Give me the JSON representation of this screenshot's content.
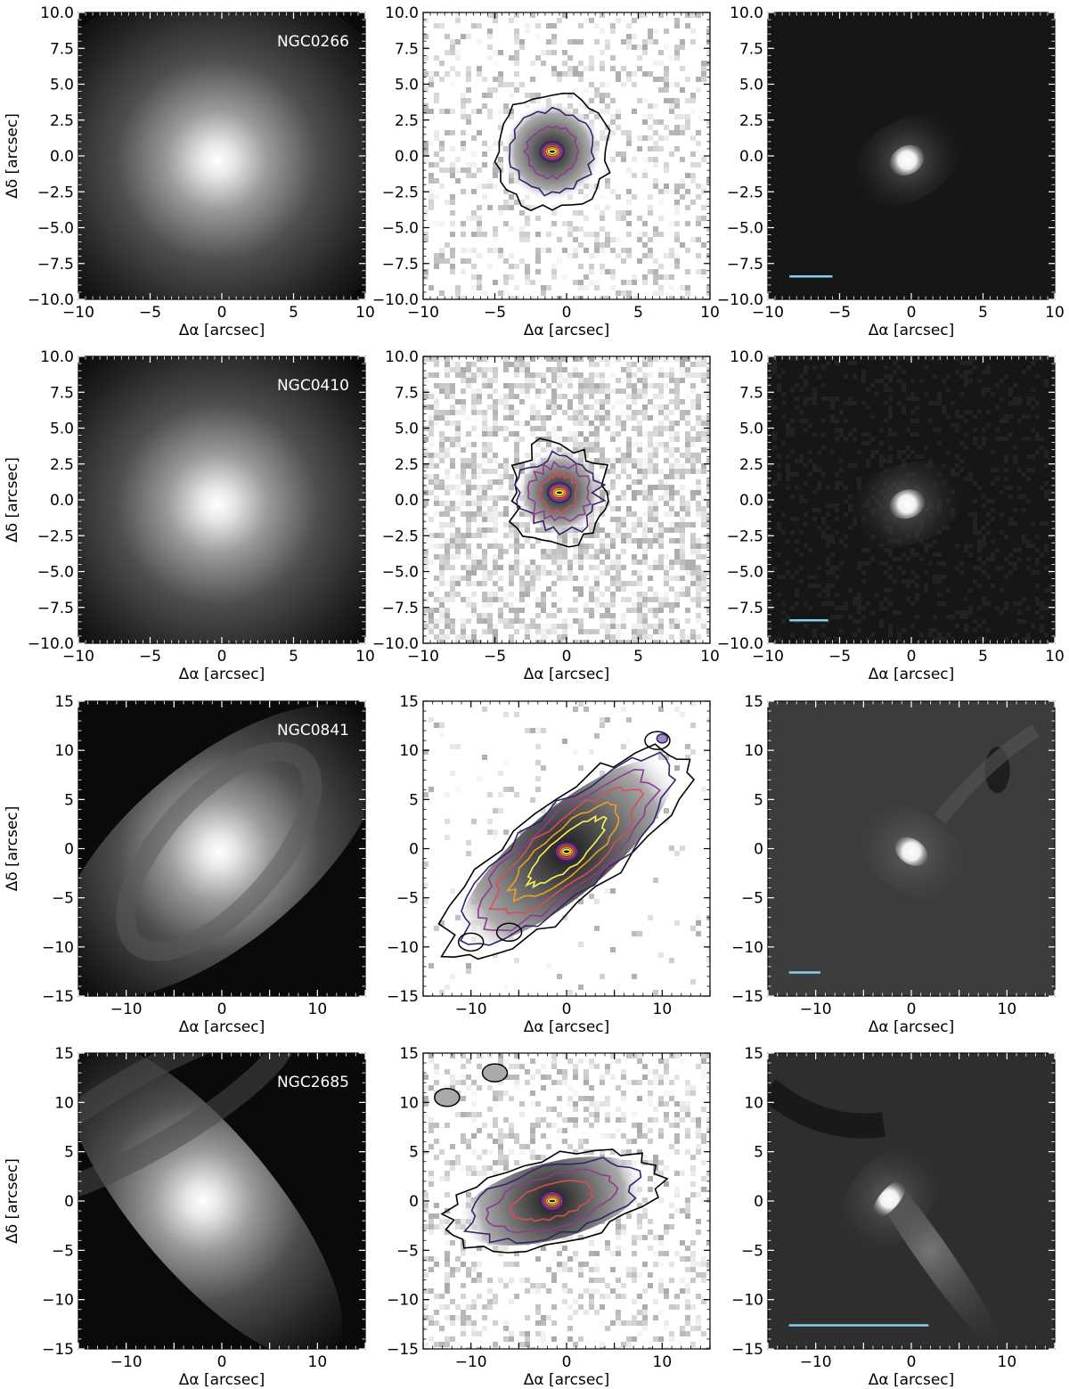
{
  "figure": {
    "xlabel": "Δα [arcsec]",
    "ylabel": "Δδ [arcsec]",
    "columns": [
      "image",
      "map",
      "residual"
    ],
    "rows": [
      {
        "galaxy": "NGC0266",
        "lim": 10,
        "ticks": [
          -10,
          -5,
          0,
          5,
          10
        ],
        "ytick_labels": [
          "−10.0",
          "−7.5",
          "−5.0",
          "−2.5",
          "0.0",
          "2.5",
          "5.0",
          "7.5",
          "10.0"
        ],
        "xtick_labels": [
          "−10",
          "−5",
          "0",
          "5",
          "10"
        ],
        "image": {
          "core": [
            -0.3,
            -0.3
          ],
          "axis_ratio": 0.9,
          "angle": 0
        },
        "map": {
          "type": "blob",
          "center": [
            -1,
            0.3
          ],
          "contours": 3
        },
        "residual": {
          "core": [
            -0.3,
            -0.3
          ],
          "angle": -30
        },
        "scalebar_arcsec": [
          -8.5,
          -5.5
        ],
        "scalebar_y": -8.4
      },
      {
        "galaxy": "NGC0410",
        "lim": 10,
        "ticks": [
          -10,
          -5,
          0,
          5,
          10
        ],
        "ytick_labels": [
          "−10.0",
          "−7.5",
          "−5.0",
          "−2.5",
          "0.0",
          "2.5",
          "5.0",
          "7.5",
          "10.0"
        ],
        "xtick_labels": [
          "−10",
          "−5",
          "0",
          "5",
          "10"
        ],
        "image": {
          "core": [
            -0.3,
            -0.3
          ],
          "axis_ratio": 0.95,
          "angle": 0
        },
        "map": {
          "type": "noisy",
          "center": [
            -0.5,
            0.5
          ],
          "contours": 4
        },
        "residual": {
          "core": [
            -0.3,
            -0.3
          ],
          "angle": -20
        },
        "scalebar_arcsec": [
          -8.5,
          -5.8
        ],
        "scalebar_y": -8.4
      },
      {
        "galaxy": "NGC0841",
        "lim": 15,
        "ticks": [
          -15,
          -10,
          -5,
          0,
          5,
          10,
          15
        ],
        "ytick_labels": [
          "−15",
          "−10",
          "−5",
          "0",
          "5",
          "10",
          "15"
        ],
        "xtick_labels": [
          "−10",
          "0",
          "10"
        ],
        "image": {
          "core": [
            -0.3,
            -0.3
          ],
          "axis_ratio": 0.45,
          "angle": 40
        },
        "map": {
          "type": "elongated",
          "center": [
            0,
            -0.3
          ],
          "contours": 6
        },
        "residual": {
          "core": [
            0,
            -0.3
          ],
          "angle": 35
        },
        "scalebar_arcsec": [
          -12.8,
          -9.5
        ],
        "scalebar_y": -12.6
      },
      {
        "galaxy": "NGC2685",
        "lim": 15,
        "ticks": [
          -15,
          -10,
          -5,
          0,
          5,
          10,
          15
        ],
        "ytick_labels": [
          "−15",
          "−10",
          "−5",
          "0",
          "5",
          "10",
          "15"
        ],
        "xtick_labels": [
          "−10",
          "0",
          "10"
        ],
        "image": {
          "core": [
            -2,
            0
          ],
          "axis_ratio": 0.35,
          "angle": -50
        },
        "map": {
          "type": "irregular",
          "center": [
            -1.5,
            0
          ],
          "contours": 4
        },
        "residual": {
          "core": [
            -2.3,
            0.2
          ],
          "angle": -50
        },
        "scalebar_arcsec": [
          -12.8,
          1.8
        ],
        "scalebar_y": -12.6
      }
    ],
    "colors": {
      "scalebar": "#87ceeb",
      "contour": "#000000",
      "contour_inner": [
        "#3b1f6e",
        "#8c3b8f",
        "#d94c5a",
        "#f0a020",
        "#fcf35a"
      ],
      "label_text": "#ffffff"
    }
  }
}
